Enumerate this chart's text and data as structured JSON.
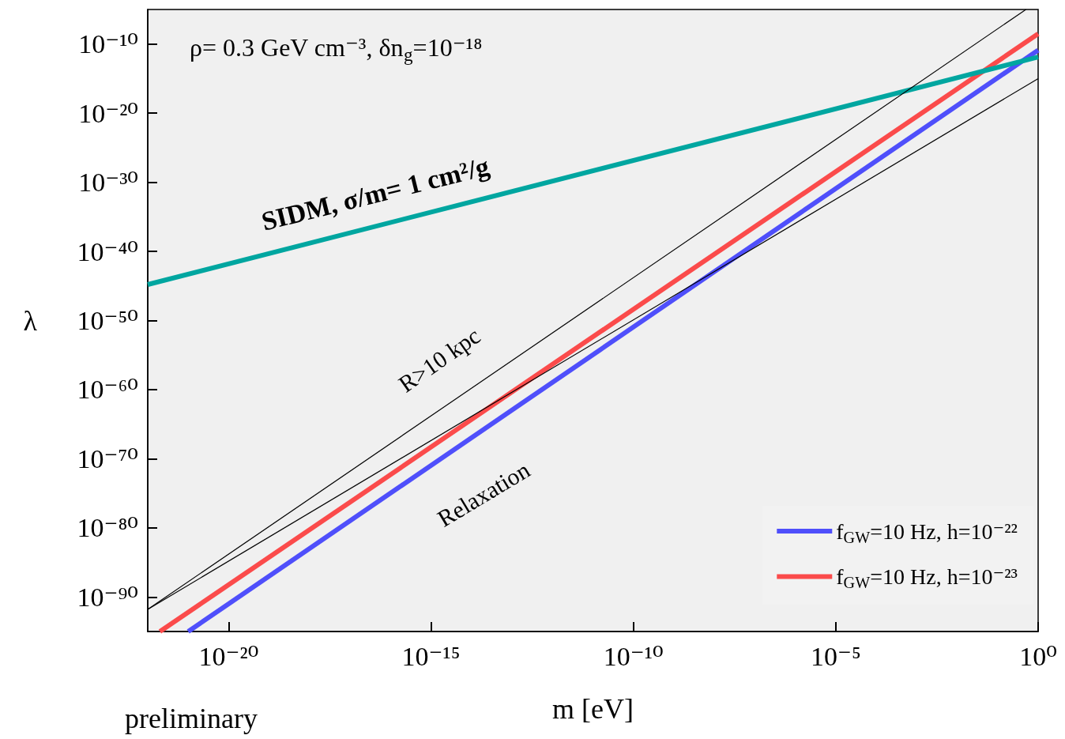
{
  "chart_data": {
    "type": "line",
    "xlabel": "m [eV]",
    "ylabel": "λ",
    "log": "xy",
    "grid": false,
    "legend": "bottom right",
    "marker": "none",
    "line_style": "solid",
    "xlim": [
      1e-22,
      1
    ],
    "ylim": [
      1e-95,
      1e-05
    ],
    "xticks": [
      {
        "value": 1e-20,
        "label": "10⁻²⁰"
      },
      {
        "value": 1e-15,
        "label": "10⁻¹⁵"
      },
      {
        "value": 1e-10,
        "label": "10⁻¹⁰"
      },
      {
        "value": 1e-05,
        "label": "10⁻⁵"
      },
      {
        "value": 1,
        "label": "10⁰"
      }
    ],
    "yticks": [
      {
        "value": 1e-90,
        "label": "10⁻⁹⁰"
      },
      {
        "value": 1e-80,
        "label": "10⁻⁸⁰"
      },
      {
        "value": 1e-70,
        "label": "10⁻⁷⁰"
      },
      {
        "value": 1e-60,
        "label": "10⁻⁶⁰"
      },
      {
        "value": 1e-50,
        "label": "10⁻⁵⁰"
      },
      {
        "value": 1e-40,
        "label": "10⁻⁴⁰"
      },
      {
        "value": 1e-30,
        "label": "10⁻³⁰"
      },
      {
        "value": 1e-20,
        "label": "10⁻²⁰"
      },
      {
        "value": 1e-10,
        "label": "10⁻¹⁰"
      }
    ],
    "series": [
      {
        "name": "f$_{GW}$=10 Hz, h=10⁻²²",
        "color": "#4f4ffb",
        "x": [
          1e-21,
          1
        ],
        "values": [
          1e-95,
          1.3e-11
        ]
      },
      {
        "name": "f$_{GW}$=10 Hz, h=10⁻²³",
        "color": "#fb4b4b",
        "x": [
          2e-22,
          1
        ],
        "values": [
          1e-95,
          3e-09
        ]
      },
      {
        "color": "#00a6a0",
        "x": [
          1e-22,
          1
        ],
        "values": [
          1.6e-45,
          1.3e-12
        ]
      },
      {
        "color": "#000000",
        "x": [
          1e-22,
          0.5
        ],
        "values": [
          1.6e-92,
          1e-05
        ]
      },
      {
        "color": "#000000",
        "x": [
          1e-22,
          1
        ],
        "values": [
          1.6e-92,
          1e-15
        ]
      }
    ],
    "annotations": [
      "ρ= 0.3 GeV cm⁻³, δn$_{g}$=10⁻¹⁸",
      "SIDM, σ/m= 1 cm²/g",
      "R>10 kpc",
      "Relaxation",
      "preliminary"
    ]
  }
}
